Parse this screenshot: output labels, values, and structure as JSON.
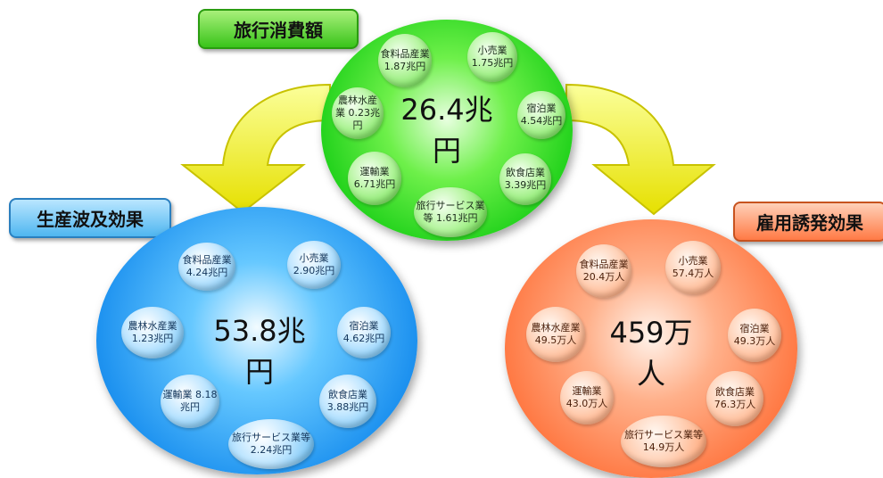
{
  "labels": {
    "top": "旅行消費額",
    "left": "生産波及効果",
    "right": "雇用誘発効果"
  },
  "colors": {
    "top": "#1fd11a",
    "left": "#1f93f0",
    "right": "#ff7a45",
    "arrow": "#f2f000"
  },
  "top": {
    "total": "26.4兆円",
    "items": [
      {
        "text": "食料品産業 1.87兆円"
      },
      {
        "text": "小売業 1.75兆円"
      },
      {
        "text": "農林水産業 0.23兆円"
      },
      {
        "text": "宿泊業 4.54兆円"
      },
      {
        "text": "運輸業 6.71兆円"
      },
      {
        "text": "飲食店業 3.39兆円"
      },
      {
        "text": "旅行サービス業等 1.61兆円"
      }
    ]
  },
  "left": {
    "total": "53.8兆円",
    "items": [
      {
        "text": "食料品産業 4.24兆円"
      },
      {
        "text": "小売業 2.90兆円"
      },
      {
        "text": "農林水産業 1.23兆円"
      },
      {
        "text": "宿泊業 4.62兆円"
      },
      {
        "text": "運輸業 8.18兆円"
      },
      {
        "text": "飲食店業 3.88兆円"
      },
      {
        "text": "旅行サービス業等 2.24兆円"
      }
    ]
  },
  "right": {
    "total": "459万人",
    "items": [
      {
        "text": "食料品産業 20.4万人"
      },
      {
        "text": "小売業 57.4万人"
      },
      {
        "text": "農林水産業 49.5万人"
      },
      {
        "text": "宿泊業 49.3万人"
      },
      {
        "text": "運輸業 43.0万人"
      },
      {
        "text": "飲食店業 76.3万人"
      },
      {
        "text": "旅行サービス業等 14.9万人"
      }
    ]
  }
}
